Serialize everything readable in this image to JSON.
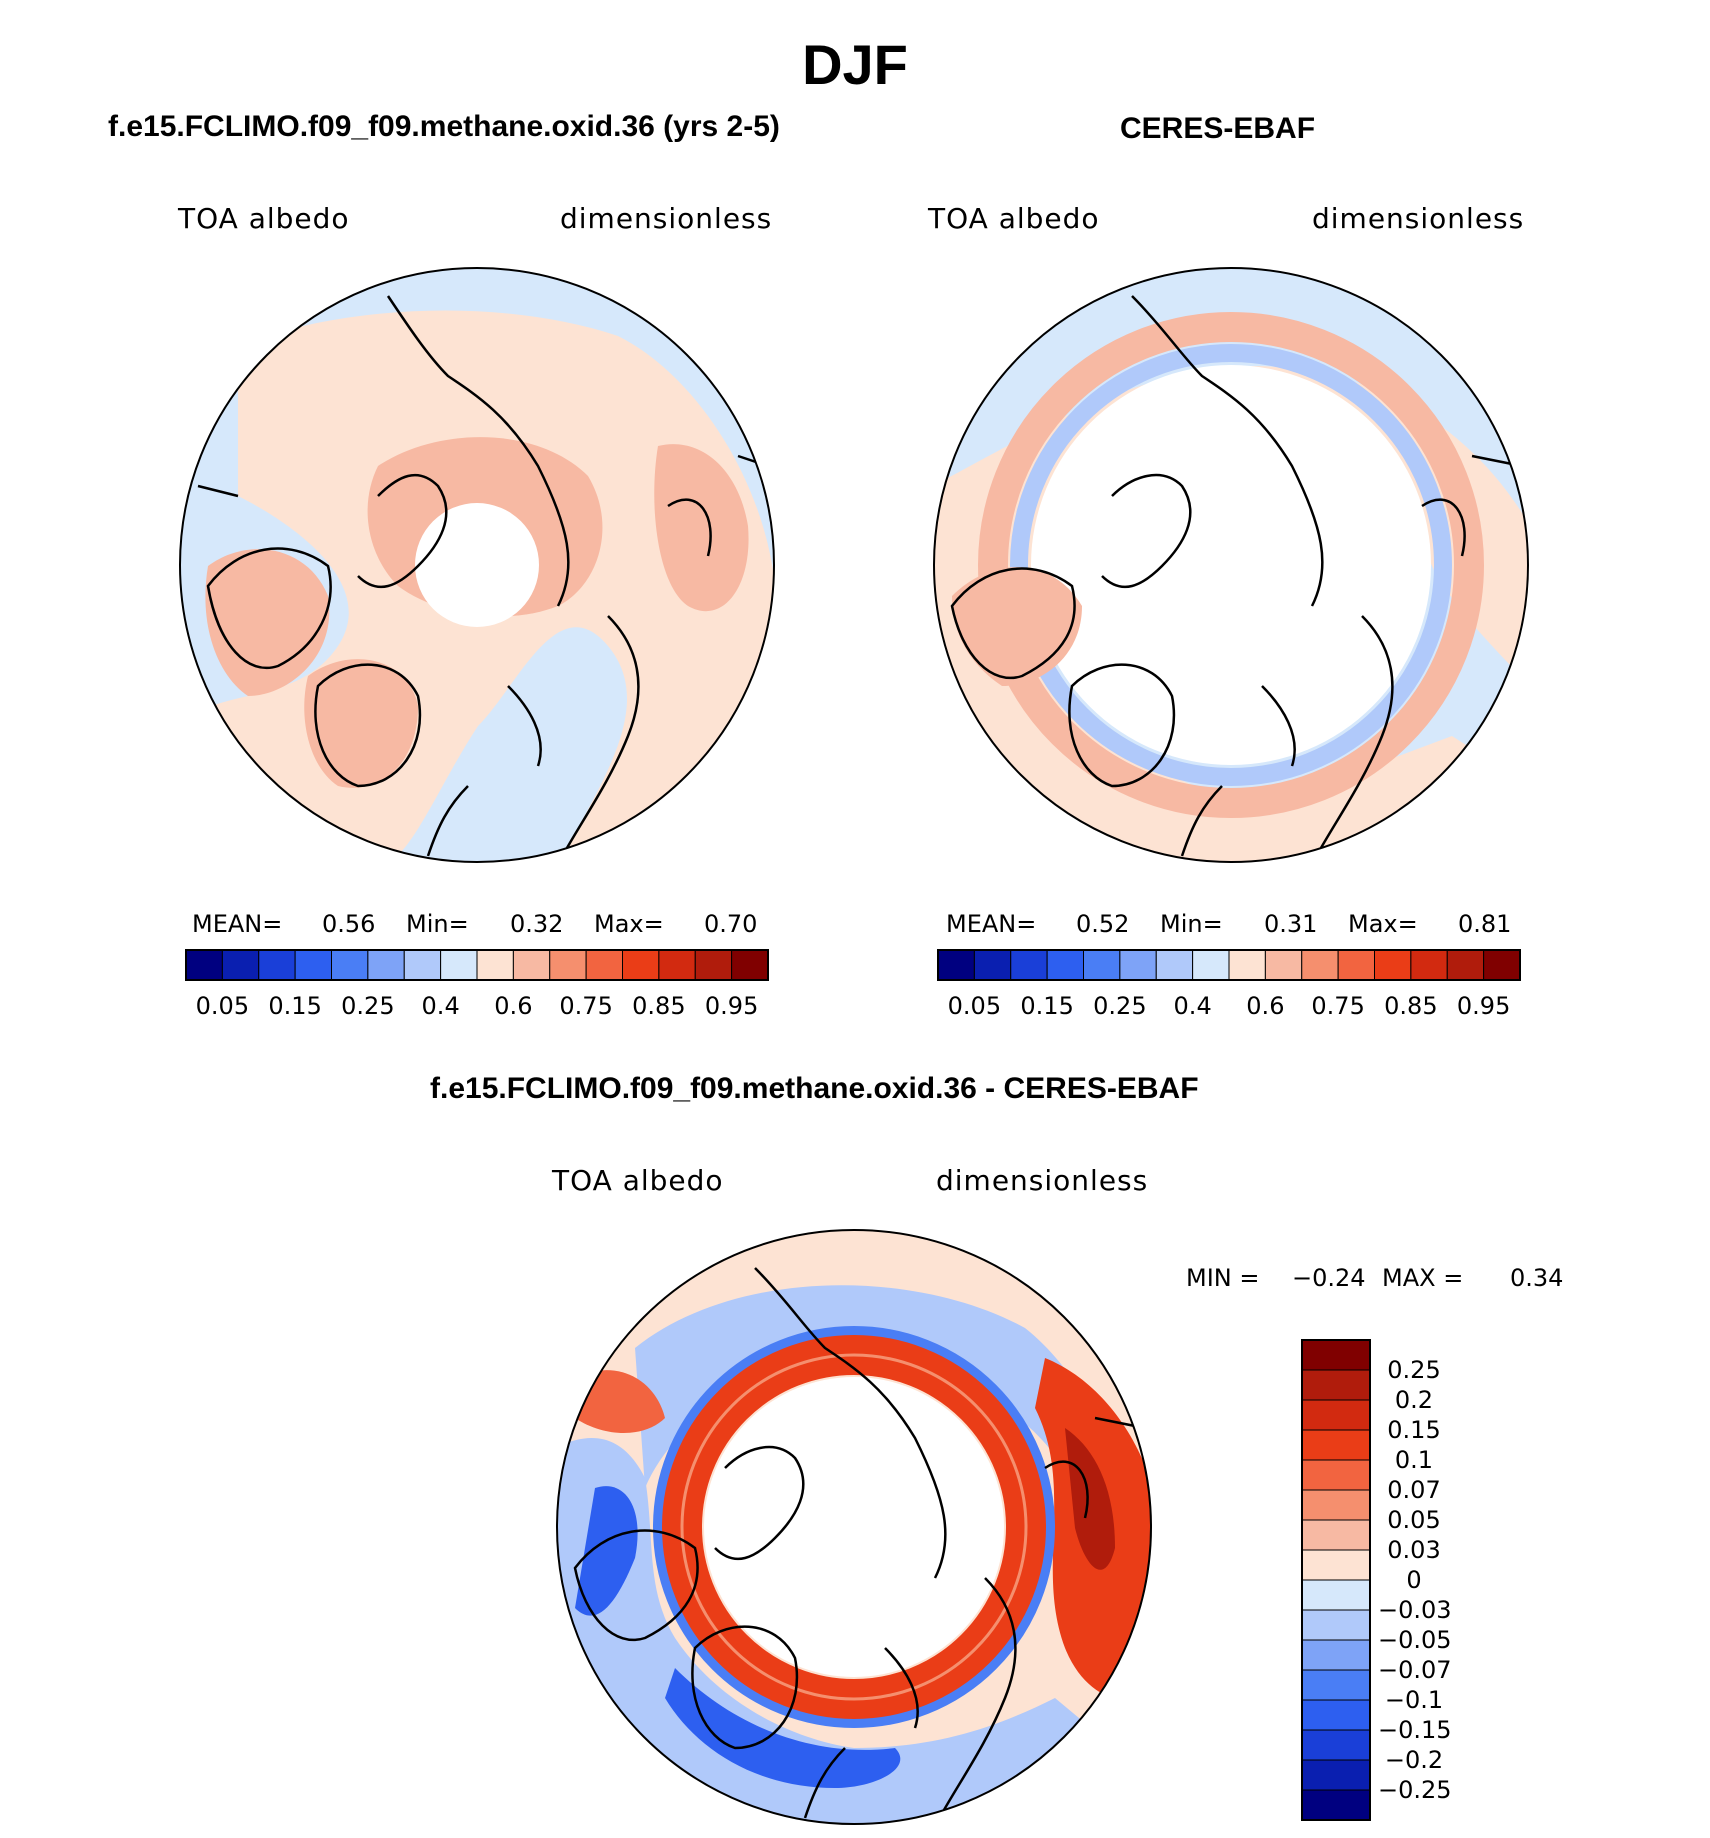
{
  "figure": {
    "title": "DJF"
  },
  "panels": [
    {
      "id": "model",
      "title": "f.e15.FCLIMO.f09_f09.methane.oxid.36 (yrs 2-5)",
      "variable": "TOA albedo",
      "units": "dimensionless",
      "stats": {
        "mean_label": "MEAN=",
        "mean": "0.56",
        "min_label": "Min=",
        "min": "0.32",
        "max_label": "Max=",
        "max": "0.70"
      },
      "map_description_colors": {
        "low": "#d6e8fb",
        "mid": "#fde3d3",
        "high": "#f7b9a3"
      }
    },
    {
      "id": "obs",
      "title": "CERES-EBAF",
      "variable": "TOA albedo",
      "units": "dimensionless",
      "stats": {
        "mean_label": "MEAN=",
        "mean": "0.52",
        "min_label": "Min=",
        "min": "0.31",
        "max_label": "Max=",
        "max": "0.81"
      },
      "map_description_colors": {
        "low": "#d6e8fb",
        "mid": "#fde3d3",
        "high": "#f7b9a3"
      }
    },
    {
      "id": "diff",
      "title": "f.e15.FCLIMO.f09_f09.methane.oxid.36 - CERES-EBAF",
      "variable": "TOA albedo",
      "units": "dimensionless",
      "stats": {
        "min_label": "MIN =",
        "min": "−0.24",
        "max_label": "MAX =",
        "max": "0.34"
      }
    }
  ],
  "colorbar_main": {
    "colors": [
      "#000080",
      "#0a1fb0",
      "#1a3fd8",
      "#2d5ff0",
      "#4a7ef5",
      "#7ea3f7",
      "#b0c9fa",
      "#d6e8fb",
      "#fde3d3",
      "#f7b9a3",
      "#f58f6e",
      "#f26440",
      "#ea3d17",
      "#d22a10",
      "#b01c0c",
      "#800000"
    ],
    "tick_labels": [
      "0.05",
      "0.15",
      "0.25",
      "0.4",
      "0.6",
      "0.75",
      "0.85",
      "0.95"
    ]
  },
  "colorbar_diff": {
    "colors": [
      "#800000",
      "#b01c0c",
      "#d22a10",
      "#ea3d17",
      "#f26440",
      "#f58f6e",
      "#f7b9a3",
      "#fde3d3",
      "#d6e8fb",
      "#b0c9fa",
      "#7ea3f7",
      "#4a7ef5",
      "#2d5ff0",
      "#1a3fd8",
      "#0a1fb0",
      "#000080"
    ],
    "tick_labels": [
      "0.25",
      "0.2",
      "0.15",
      "0.1",
      "0.07",
      "0.05",
      "0.03",
      "0",
      "−0.03",
      "−0.05",
      "−0.07",
      "−0.1",
      "−0.15",
      "−0.2",
      "−0.25"
    ]
  }
}
